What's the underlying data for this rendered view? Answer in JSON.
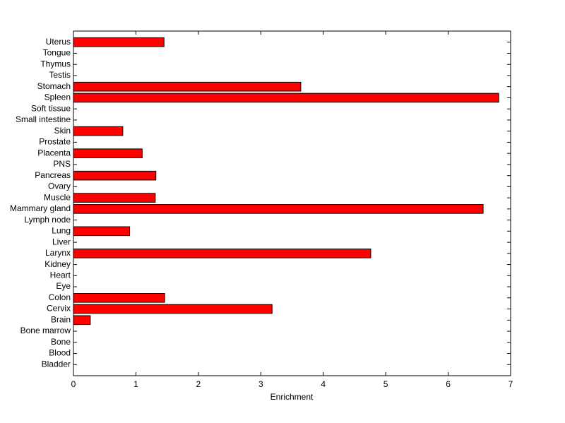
{
  "chart_data": {
    "type": "barh",
    "xlabel": "Enrichment",
    "categories": [
      "Bladder",
      "Blood",
      "Bone",
      "Bone marrow",
      "Brain",
      "Cervix",
      "Colon",
      "Eye",
      "Heart",
      "Kidney",
      "Larynx",
      "Liver",
      "Lung",
      "Lymph node",
      "Mammary gland",
      "Muscle",
      "Ovary",
      "Pancreas",
      "PNS",
      "Placenta",
      "Prostate",
      "Skin",
      "Small intestine",
      "Soft tissue",
      "Spleen",
      "Stomach",
      "Testis",
      "Thymus",
      "Tongue",
      "Uterus"
    ],
    "values": [
      0,
      0,
      0,
      0,
      0.27,
      3.18,
      1.46,
      0,
      0,
      0,
      4.76,
      0,
      0.9,
      0,
      6.56,
      1.31,
      0,
      1.32,
      0,
      1.1,
      0,
      0.79,
      0,
      0,
      6.81,
      3.64,
      0,
      0,
      0,
      1.45
    ],
    "color": "#ff0000",
    "xlim": [
      0,
      7
    ],
    "xticks": [
      0,
      1,
      2,
      3,
      4,
      5,
      6,
      7
    ]
  }
}
